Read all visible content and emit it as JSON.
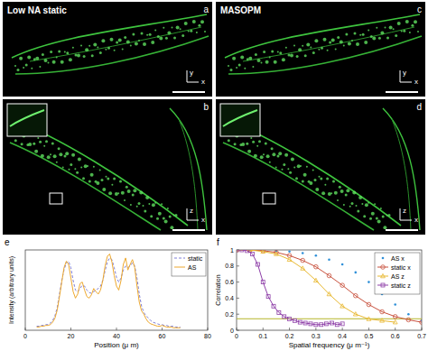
{
  "panels": [
    {
      "label": "a",
      "title": "Low NA static",
      "axes": [
        "y",
        "x"
      ]
    },
    {
      "label": "b",
      "axes": [
        "z",
        "x"
      ]
    },
    {
      "label": "c",
      "title": "MASOPM",
      "axes": [
        "y",
        "x"
      ]
    },
    {
      "label": "d",
      "axes": [
        "z",
        "x"
      ]
    }
  ],
  "chart_data": [
    {
      "panel": "e",
      "type": "line",
      "x_label": "Position (μ m)",
      "y_label": "Intensity (arbitrary units)",
      "x": [
        5,
        6,
        7,
        8,
        9,
        10,
        11,
        12,
        13,
        14,
        15,
        16,
        17,
        18,
        19,
        20,
        21,
        22,
        23,
        24,
        25,
        26,
        27,
        28,
        29,
        30,
        31,
        32,
        33,
        34,
        35,
        36,
        37,
        38,
        39,
        40,
        41,
        42,
        43,
        44,
        45,
        46,
        47,
        48,
        49,
        50,
        51,
        52,
        53,
        54,
        55,
        56,
        57,
        58,
        59,
        60,
        61,
        62,
        63,
        64,
        65,
        66,
        67,
        68
      ],
      "series": [
        {
          "name": "static",
          "color": "#7f7fd6",
          "line_style": "dashed",
          "values": [
            0.05,
            0.05,
            0.06,
            0.06,
            0.07,
            0.07,
            0.09,
            0.12,
            0.18,
            0.28,
            0.45,
            0.62,
            0.75,
            0.84,
            0.86,
            0.78,
            0.62,
            0.5,
            0.48,
            0.52,
            0.56,
            0.55,
            0.5,
            0.47,
            0.46,
            0.48,
            0.5,
            0.52,
            0.55,
            0.62,
            0.74,
            0.85,
            0.9,
            0.88,
            0.78,
            0.66,
            0.6,
            0.65,
            0.75,
            0.8,
            0.78,
            0.8,
            0.84,
            0.8,
            0.65,
            0.45,
            0.3,
            0.22,
            0.18,
            0.15,
            0.12,
            0.1,
            0.09,
            0.08,
            0.07,
            0.07,
            0.06,
            0.06,
            0.05,
            0.05,
            0.05,
            0.04,
            0.04,
            0.04
          ]
        },
        {
          "name": "AS",
          "color": "#eda82e",
          "line_style": "solid",
          "values": [
            0.04,
            0.04,
            0.05,
            0.05,
            0.06,
            0.06,
            0.07,
            0.1,
            0.15,
            0.25,
            0.42,
            0.6,
            0.78,
            0.86,
            0.82,
            0.65,
            0.48,
            0.4,
            0.45,
            0.58,
            0.6,
            0.5,
            0.42,
            0.4,
            0.44,
            0.52,
            0.48,
            0.45,
            0.5,
            0.62,
            0.8,
            0.92,
            0.95,
            0.85,
            0.68,
            0.55,
            0.5,
            0.62,
            0.82,
            0.9,
            0.75,
            0.82,
            0.88,
            0.78,
            0.55,
            0.35,
            0.24,
            0.2,
            0.14,
            0.1,
            0.08,
            0.07,
            0.06,
            0.05,
            0.05,
            0.06,
            0.05,
            0.04,
            0.04,
            0.04,
            0.03,
            0.03,
            0.03,
            0.03
          ]
        }
      ],
      "xlim": [
        0,
        80
      ],
      "xticks": [
        0,
        20,
        40,
        60,
        80
      ],
      "ylim": [
        0,
        1
      ],
      "tick_labels": "x",
      "legend": "upper-right"
    },
    {
      "panel": "f",
      "type": "line",
      "x_label": "Spatial frequency (μ m⁻¹)",
      "y_label": "Correlation",
      "series": [
        {
          "name": "AS x",
          "color": "#2e8fd8",
          "marker": "dot",
          "line_style": "none",
          "x": [
            0,
            0.05,
            0.1,
            0.15,
            0.2,
            0.25,
            0.3,
            0.35,
            0.4,
            0.45,
            0.5,
            0.55,
            0.6,
            0.65,
            0.7
          ],
          "values": [
            1,
            1,
            1,
            0.99,
            0.98,
            0.96,
            0.93,
            0.88,
            0.82,
            0.72,
            0.6,
            0.45,
            0.32,
            0.2,
            0.12
          ]
        },
        {
          "name": "static x",
          "color": "#c8503c",
          "marker": "circle",
          "line_style": "solid",
          "x": [
            0,
            0.05,
            0.1,
            0.15,
            0.2,
            0.25,
            0.3,
            0.35,
            0.4,
            0.45,
            0.5,
            0.55,
            0.6,
            0.65,
            0.7
          ],
          "values": [
            1,
            1,
            0.99,
            0.97,
            0.93,
            0.87,
            0.79,
            0.68,
            0.56,
            0.43,
            0.32,
            0.23,
            0.17,
            0.13,
            0.1
          ]
        },
        {
          "name": "AS z",
          "color": "#e8b830",
          "marker": "triangle",
          "line_style": "solid",
          "x": [
            0,
            0.05,
            0.1,
            0.15,
            0.2,
            0.25,
            0.3,
            0.35,
            0.4,
            0.45,
            0.5,
            0.55,
            0.6
          ],
          "values": [
            1,
            1,
            0.98,
            0.95,
            0.88,
            0.77,
            0.62,
            0.45,
            0.3,
            0.2,
            0.14,
            0.12,
            0.1
          ]
        },
        {
          "name": "static z",
          "color": "#8e3fa8",
          "marker": "square",
          "line_style": "solid",
          "x": [
            0,
            0.02,
            0.04,
            0.06,
            0.08,
            0.1,
            0.12,
            0.14,
            0.16,
            0.18,
            0.2,
            0.22,
            0.24,
            0.26,
            0.28,
            0.3,
            0.32,
            0.34,
            0.36,
            0.38,
            0.4
          ],
          "values": [
            1,
            1,
            0.99,
            0.95,
            0.82,
            0.6,
            0.42,
            0.3,
            0.22,
            0.17,
            0.14,
            0.12,
            0.1,
            0.09,
            0.08,
            0.07,
            0.07,
            0.08,
            0.09,
            0.07,
            0.08
          ]
        }
      ],
      "threshold": 0.143,
      "xlim": [
        0,
        0.7
      ],
      "xticks": [
        0,
        0.1,
        0.2,
        0.3,
        0.4,
        0.5,
        0.6,
        0.7
      ],
      "ylim": [
        0,
        1
      ],
      "yticks": [
        0,
        0.2,
        0.4,
        0.6,
        0.8,
        1
      ],
      "legend": "upper-right"
    }
  ]
}
